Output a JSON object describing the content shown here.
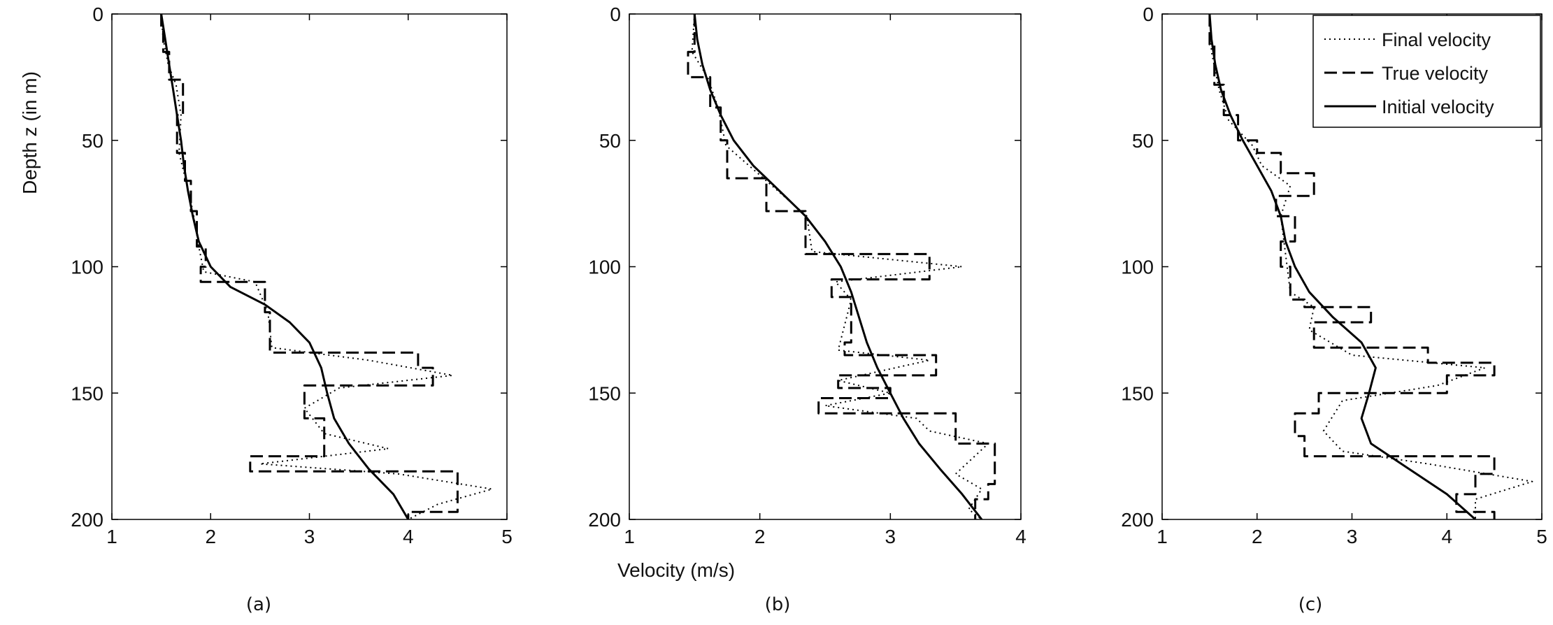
{
  "chart_data": [
    {
      "type": "line",
      "panel": "(a)",
      "ylabel": "Depth z (in m)",
      "xlabel": "",
      "xlim": [
        1,
        5
      ],
      "ylim": [
        0,
        200
      ],
      "y_reversed": true,
      "xticks": [
        1,
        2,
        3,
        4,
        5
      ],
      "yticks": [
        0,
        50,
        100,
        150,
        200
      ],
      "grid": false,
      "legend": false,
      "series": [
        {
          "key": "initial",
          "style": "solid",
          "points": [
            [
              1.5,
              0
            ],
            [
              1.54,
              10
            ],
            [
              1.58,
              20
            ],
            [
              1.62,
              30
            ],
            [
              1.66,
              40
            ],
            [
              1.7,
              50
            ],
            [
              1.73,
              60
            ],
            [
              1.77,
              70
            ],
            [
              1.82,
              80
            ],
            [
              1.88,
              90
            ],
            [
              2.0,
              100
            ],
            [
              2.2,
              108
            ],
            [
              2.55,
              115
            ],
            [
              2.8,
              122
            ],
            [
              3.0,
              130
            ],
            [
              3.12,
              140
            ],
            [
              3.18,
              150
            ],
            [
              3.25,
              160
            ],
            [
              3.4,
              170
            ],
            [
              3.6,
              180
            ],
            [
              3.85,
              190
            ],
            [
              4.0,
              200
            ]
          ]
        },
        {
          "key": "true",
          "style": "dashed",
          "points": [
            [
              1.5,
              0
            ],
            [
              1.5,
              5
            ],
            [
              1.52,
              5
            ],
            [
              1.52,
              15
            ],
            [
              1.58,
              15
            ],
            [
              1.58,
              26
            ],
            [
              1.72,
              26
            ],
            [
              1.72,
              40
            ],
            [
              1.66,
              40
            ],
            [
              1.66,
              55
            ],
            [
              1.74,
              55
            ],
            [
              1.74,
              66
            ],
            [
              1.8,
              66
            ],
            [
              1.8,
              78
            ],
            [
              1.86,
              78
            ],
            [
              1.86,
              92
            ],
            [
              1.95,
              92
            ],
            [
              1.95,
              100
            ],
            [
              1.9,
              100
            ],
            [
              1.9,
              106
            ],
            [
              2.55,
              106
            ],
            [
              2.55,
              118
            ],
            [
              2.6,
              118
            ],
            [
              2.6,
              134
            ],
            [
              4.1,
              134
            ],
            [
              4.1,
              140
            ],
            [
              4.25,
              140
            ],
            [
              4.25,
              147
            ],
            [
              2.95,
              147
            ],
            [
              2.95,
              160
            ],
            [
              3.15,
              160
            ],
            [
              3.15,
              175
            ],
            [
              2.4,
              175
            ],
            [
              2.4,
              181
            ],
            [
              4.5,
              181
            ],
            [
              4.5,
              197
            ],
            [
              4.0,
              197
            ],
            [
              4.0,
              200
            ]
          ]
        },
        {
          "key": "final",
          "style": "dotted",
          "points": [
            [
              1.5,
              0
            ],
            [
              1.52,
              10
            ],
            [
              1.57,
              20
            ],
            [
              1.65,
              28
            ],
            [
              1.7,
              40
            ],
            [
              1.68,
              55
            ],
            [
              1.75,
              66
            ],
            [
              1.82,
              78
            ],
            [
              1.88,
              92
            ],
            [
              1.93,
              102
            ],
            [
              2.45,
              106
            ],
            [
              2.58,
              118
            ],
            [
              2.62,
              132
            ],
            [
              3.6,
              137
            ],
            [
              4.45,
              143
            ],
            [
              3.3,
              148
            ],
            [
              2.95,
              156
            ],
            [
              3.15,
              166
            ],
            [
              3.8,
              172
            ],
            [
              2.5,
              178
            ],
            [
              3.9,
              182
            ],
            [
              4.85,
              188
            ],
            [
              4.3,
              194
            ],
            [
              4.0,
              200
            ]
          ]
        }
      ]
    },
    {
      "type": "line",
      "panel": "(b)",
      "ylabel": "",
      "xlabel": "Velocity (m/s)",
      "xlim": [
        1,
        4
      ],
      "ylim": [
        0,
        200
      ],
      "y_reversed": true,
      "xticks": [
        1,
        2,
        3,
        4
      ],
      "yticks": [
        0,
        50,
        100,
        150,
        200
      ],
      "grid": false,
      "legend": false,
      "series": [
        {
          "key": "initial",
          "style": "solid",
          "points": [
            [
              1.5,
              0
            ],
            [
              1.52,
              10
            ],
            [
              1.56,
              20
            ],
            [
              1.62,
              30
            ],
            [
              1.7,
              40
            ],
            [
              1.8,
              50
            ],
            [
              1.95,
              60
            ],
            [
              2.15,
              70
            ],
            [
              2.35,
              80
            ],
            [
              2.5,
              90
            ],
            [
              2.62,
              100
            ],
            [
              2.7,
              110
            ],
            [
              2.76,
              120
            ],
            [
              2.82,
              130
            ],
            [
              2.9,
              140
            ],
            [
              3.0,
              150
            ],
            [
              3.1,
              160
            ],
            [
              3.22,
              170
            ],
            [
              3.38,
              180
            ],
            [
              3.55,
              190
            ],
            [
              3.7,
              200
            ]
          ]
        },
        {
          "key": "true",
          "style": "dashed",
          "points": [
            [
              1.5,
              0
            ],
            [
              1.5,
              15
            ],
            [
              1.45,
              15
            ],
            [
              1.45,
              25
            ],
            [
              1.62,
              25
            ],
            [
              1.62,
              37
            ],
            [
              1.7,
              37
            ],
            [
              1.7,
              50
            ],
            [
              1.75,
              50
            ],
            [
              1.75,
              65
            ],
            [
              2.05,
              65
            ],
            [
              2.05,
              78
            ],
            [
              2.35,
              78
            ],
            [
              2.35,
              95
            ],
            [
              3.3,
              95
            ],
            [
              3.3,
              105
            ],
            [
              2.55,
              105
            ],
            [
              2.55,
              112
            ],
            [
              2.7,
              112
            ],
            [
              2.7,
              130
            ],
            [
              2.65,
              130
            ],
            [
              2.65,
              135
            ],
            [
              3.35,
              135
            ],
            [
              3.35,
              143
            ],
            [
              2.6,
              143
            ],
            [
              2.6,
              148
            ],
            [
              3.0,
              148
            ],
            [
              3.0,
              152
            ],
            [
              2.45,
              152
            ],
            [
              2.45,
              158
            ],
            [
              3.5,
              158
            ],
            [
              3.5,
              170
            ],
            [
              3.8,
              170
            ],
            [
              3.8,
              186
            ],
            [
              3.75,
              186
            ],
            [
              3.75,
              192
            ],
            [
              3.65,
              192
            ],
            [
              3.65,
              200
            ]
          ]
        },
        {
          "key": "final",
          "style": "dotted",
          "points": [
            [
              1.5,
              0
            ],
            [
              1.48,
              15
            ],
            [
              1.6,
              25
            ],
            [
              1.68,
              37
            ],
            [
              1.74,
              52
            ],
            [
              2.05,
              66
            ],
            [
              2.36,
              80
            ],
            [
              2.4,
              94
            ],
            [
              3.55,
              100
            ],
            [
              2.58,
              106
            ],
            [
              2.7,
              113
            ],
            [
              2.6,
              133
            ],
            [
              3.3,
              137
            ],
            [
              2.6,
              145
            ],
            [
              3.0,
              150
            ],
            [
              2.5,
              155
            ],
            [
              3.2,
              160
            ],
            [
              3.3,
              165
            ],
            [
              3.75,
              170
            ],
            [
              3.5,
              182
            ],
            [
              3.7,
              188
            ],
            [
              3.6,
              196
            ],
            [
              3.7,
              200
            ]
          ]
        }
      ]
    },
    {
      "type": "line",
      "panel": "(c)",
      "ylabel": "",
      "xlabel": "",
      "xlim": [
        1,
        5
      ],
      "ylim": [
        0,
        200
      ],
      "y_reversed": true,
      "xticks": [
        1,
        2,
        3,
        4,
        5
      ],
      "yticks": [
        0,
        50,
        100,
        150,
        200
      ],
      "grid": false,
      "legend": true,
      "legend_position": "top-right",
      "series": [
        {
          "key": "final",
          "name": "Final velocity",
          "style": "dotted",
          "points": [
            [
              1.5,
              0
            ],
            [
              1.52,
              15
            ],
            [
              1.6,
              30
            ],
            [
              1.7,
              42
            ],
            [
              1.95,
              52
            ],
            [
              2.05,
              60
            ],
            [
              2.35,
              68
            ],
            [
              2.25,
              80
            ],
            [
              2.3,
              95
            ],
            [
              2.35,
              110
            ],
            [
              2.6,
              116
            ],
            [
              2.55,
              125
            ],
            [
              3.0,
              135
            ],
            [
              4.4,
              140
            ],
            [
              3.9,
              147
            ],
            [
              2.9,
              153
            ],
            [
              2.7,
              165
            ],
            [
              2.9,
              173
            ],
            [
              3.8,
              178
            ],
            [
              4.9,
              185
            ],
            [
              4.3,
              192
            ],
            [
              4.3,
              200
            ]
          ]
        },
        {
          "key": "true",
          "name": "True velocity",
          "style": "dashed",
          "points": [
            [
              1.5,
              0
            ],
            [
              1.5,
              12
            ],
            [
              1.55,
              12
            ],
            [
              1.55,
              28
            ],
            [
              1.65,
              28
            ],
            [
              1.65,
              40
            ],
            [
              1.8,
              40
            ],
            [
              1.8,
              50
            ],
            [
              2.0,
              50
            ],
            [
              2.0,
              55
            ],
            [
              2.25,
              55
            ],
            [
              2.25,
              63
            ],
            [
              2.6,
              63
            ],
            [
              2.6,
              72
            ],
            [
              2.2,
              72
            ],
            [
              2.2,
              80
            ],
            [
              2.4,
              80
            ],
            [
              2.4,
              90
            ],
            [
              2.25,
              90
            ],
            [
              2.25,
              100
            ],
            [
              2.35,
              100
            ],
            [
              2.35,
              113
            ],
            [
              2.5,
              113
            ],
            [
              2.5,
              116
            ],
            [
              3.2,
              116
            ],
            [
              3.2,
              122
            ],
            [
              2.6,
              122
            ],
            [
              2.6,
              132
            ],
            [
              3.8,
              132
            ],
            [
              3.8,
              138
            ],
            [
              4.5,
              138
            ],
            [
              4.5,
              143
            ],
            [
              4.0,
              143
            ],
            [
              4.0,
              150
            ],
            [
              2.65,
              150
            ],
            [
              2.65,
              158
            ],
            [
              2.4,
              158
            ],
            [
              2.4,
              167
            ],
            [
              2.5,
              167
            ],
            [
              2.5,
              175
            ],
            [
              4.5,
              175
            ],
            [
              4.5,
              182
            ],
            [
              4.3,
              182
            ],
            [
              4.3,
              190
            ],
            [
              4.1,
              190
            ],
            [
              4.1,
              197
            ],
            [
              4.5,
              197
            ],
            [
              4.5,
              200
            ]
          ]
        },
        {
          "key": "initial",
          "name": "Initial velocity",
          "style": "solid",
          "points": [
            [
              1.5,
              0
            ],
            [
              1.52,
              10
            ],
            [
              1.56,
              20
            ],
            [
              1.62,
              30
            ],
            [
              1.72,
              40
            ],
            [
              1.85,
              50
            ],
            [
              2.0,
              60
            ],
            [
              2.15,
              70
            ],
            [
              2.25,
              80
            ],
            [
              2.3,
              90
            ],
            [
              2.4,
              100
            ],
            [
              2.55,
              110
            ],
            [
              2.8,
              120
            ],
            [
              3.1,
              130
            ],
            [
              3.25,
              140
            ],
            [
              3.18,
              150
            ],
            [
              3.1,
              160
            ],
            [
              3.2,
              170
            ],
            [
              3.6,
              180
            ],
            [
              4.0,
              190
            ],
            [
              4.3,
              200
            ]
          ]
        }
      ]
    }
  ],
  "captions": [
    "(a)",
    "(b)",
    "(c)"
  ]
}
